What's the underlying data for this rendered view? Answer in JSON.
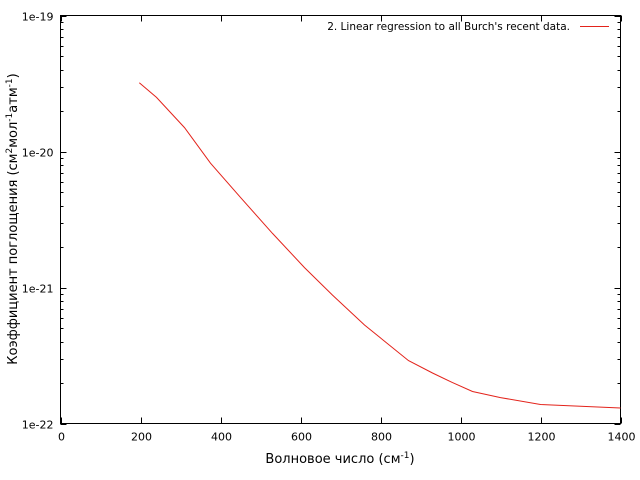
{
  "chart_data": {
    "type": "line",
    "title": "",
    "xlabel": {
      "base": "Волновое число (см",
      "sup": "-1",
      "tail": ")"
    },
    "ylabel": {
      "parts": [
        {
          "t": "Коэффициент поглощения (см"
        },
        {
          "t": "2",
          "sup": true
        },
        {
          "t": "мол"
        },
        {
          "t": "-1",
          "sup": true
        },
        {
          "t": "атм"
        },
        {
          "t": "-1",
          "sup": true
        },
        {
          "t": ")"
        }
      ]
    },
    "xlim": [
      0,
      1400
    ],
    "ylim": [
      1e-22,
      1e-19
    ],
    "yscale": "log",
    "grid": false,
    "legend_position": "top-right",
    "x_ticks": [
      "0",
      "200",
      "400",
      "600",
      "800",
      "1000",
      "1200",
      "1400"
    ],
    "y_ticks": [
      "1e-22",
      "1e-21",
      "1e-20",
      "1e-19"
    ],
    "series": [
      {
        "name": "2. Linear regression to all Burch's recent data.",
        "color": "#e3231b",
        "x": [
          197,
          240,
          310,
          375,
          450,
          530,
          610,
          680,
          760,
          870,
          930,
          980,
          1030,
          1100,
          1200,
          1300,
          1400
        ],
        "y": [
          3.2e-20,
          2.5e-20,
          1.5e-20,
          8.2e-21,
          4.6e-21,
          2.5e-21,
          1.4e-21,
          8.8e-22,
          5.3e-22,
          2.9e-22,
          2.35e-22,
          2e-22,
          1.72e-22,
          1.55e-22,
          1.38e-22,
          1.34e-22,
          1.3e-22
        ]
      }
    ]
  }
}
